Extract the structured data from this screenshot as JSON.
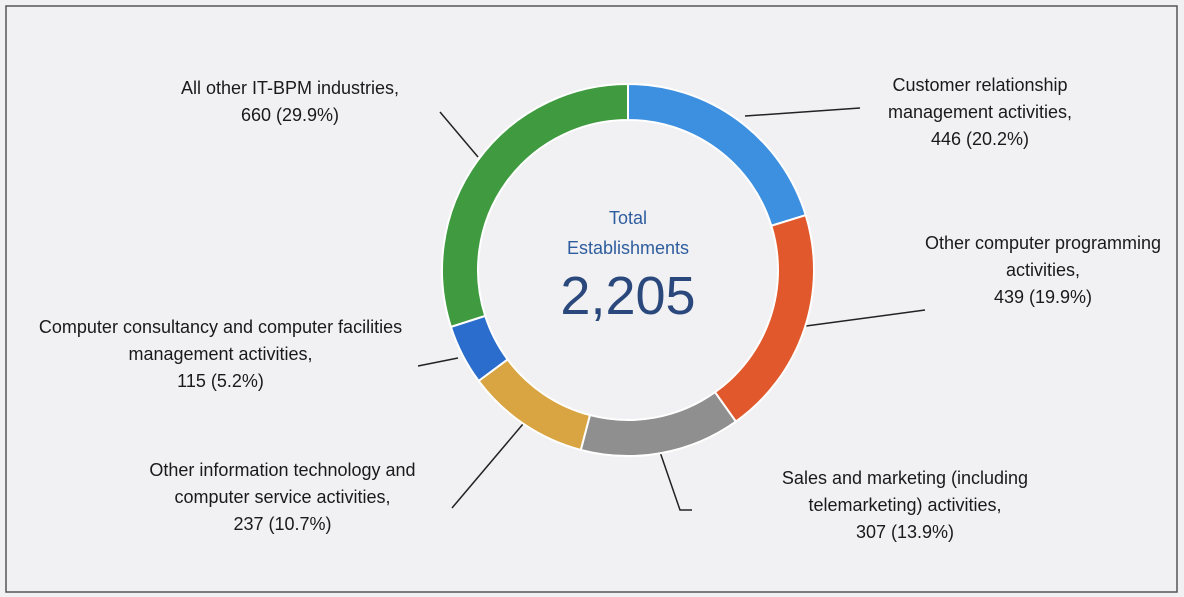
{
  "chart_data": {
    "type": "pie",
    "donut": true,
    "center_title": "Total Establishments",
    "center_value": "2,205",
    "categories": [
      "Customer relationship management activities,",
      "Other computer programming activities,",
      "Sales and marketing (including telemarketing) activities,",
      "Other information technology and computer service activities,",
      "Computer consultancy and computer facilities management activities,",
      "All other IT-BPM industries,"
    ],
    "values": [
      446,
      439,
      307,
      237,
      115,
      660
    ],
    "value_labels": [
      "446 (20.2%)",
      "439 (19.9%)",
      "307 (13.9%)",
      "237 (10.7%)",
      "115 (5.2%)",
      "660 (29.9%)"
    ],
    "colors": [
      "#3d8fe0",
      "#e0582b",
      "#8f8f8f",
      "#d9a442",
      "#2b6dcc",
      "#3f9a40"
    ]
  }
}
